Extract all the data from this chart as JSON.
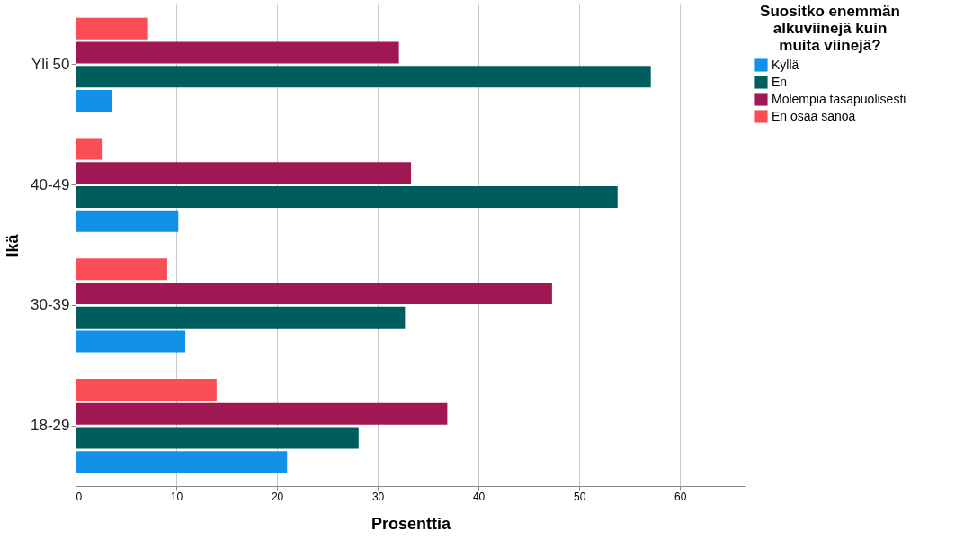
{
  "chart_data": {
    "type": "bar",
    "orientation": "horizontal",
    "xlabel": "Prosenttia",
    "ylabel": "Ikä",
    "legend_title": "Suositko enemmän alkuviinejä kuin muita viinejä?",
    "legend": "top right",
    "grid": "x",
    "categories": [
      "Yli 50",
      "40-49",
      "30-39",
      "18-29"
    ],
    "xlim": [
      0,
      66.5
    ],
    "xticks": [
      0,
      10,
      20,
      30,
      40,
      50,
      60
    ],
    "series": [
      {
        "name": "Kyllä",
        "color": "#1192e8",
        "values": [
          3.6,
          10.2,
          10.9,
          21.0
        ]
      },
      {
        "name": "En",
        "color": "#005d5d",
        "values": [
          57.1,
          53.8,
          32.7,
          28.1
        ]
      },
      {
        "name": "Molempia tasapuolisesti",
        "color": "#9f1853",
        "values": [
          32.1,
          33.3,
          47.3,
          36.9
        ]
      },
      {
        "name": "En osaa sanoa",
        "color": "#fa4d56",
        "values": [
          7.2,
          2.6,
          9.1,
          14.0
        ]
      }
    ]
  }
}
